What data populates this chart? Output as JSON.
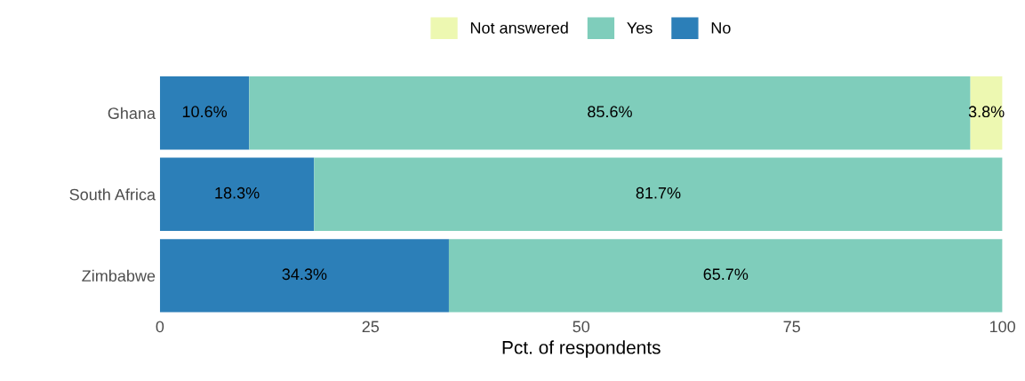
{
  "chart_data": {
    "type": "bar",
    "orientation": "horizontal",
    "stacked": true,
    "xlabel": "Pct. of respondents",
    "categories": [
      "Ghana",
      "South Africa",
      "Zimbabwe"
    ],
    "series": [
      {
        "name": "No",
        "color": "#2c7fb8",
        "values": [
          10.6,
          18.3,
          34.3
        ],
        "value_labels": [
          "10.6%",
          "18.3%",
          "34.3%"
        ]
      },
      {
        "name": "Yes",
        "color": "#7fcdbb",
        "values": [
          85.6,
          81.7,
          65.7
        ],
        "value_labels": [
          "85.6%",
          "81.7%",
          "65.7%"
        ]
      },
      {
        "name": "Not answered",
        "color": "#edf8b1",
        "values": [
          3.8,
          null,
          null
        ],
        "value_labels": [
          "3.8%",
          null,
          null
        ]
      }
    ],
    "xlim": [
      0,
      100
    ],
    "xticks": [
      0,
      25,
      50,
      75,
      100
    ],
    "legend": "top",
    "grid": false
  }
}
